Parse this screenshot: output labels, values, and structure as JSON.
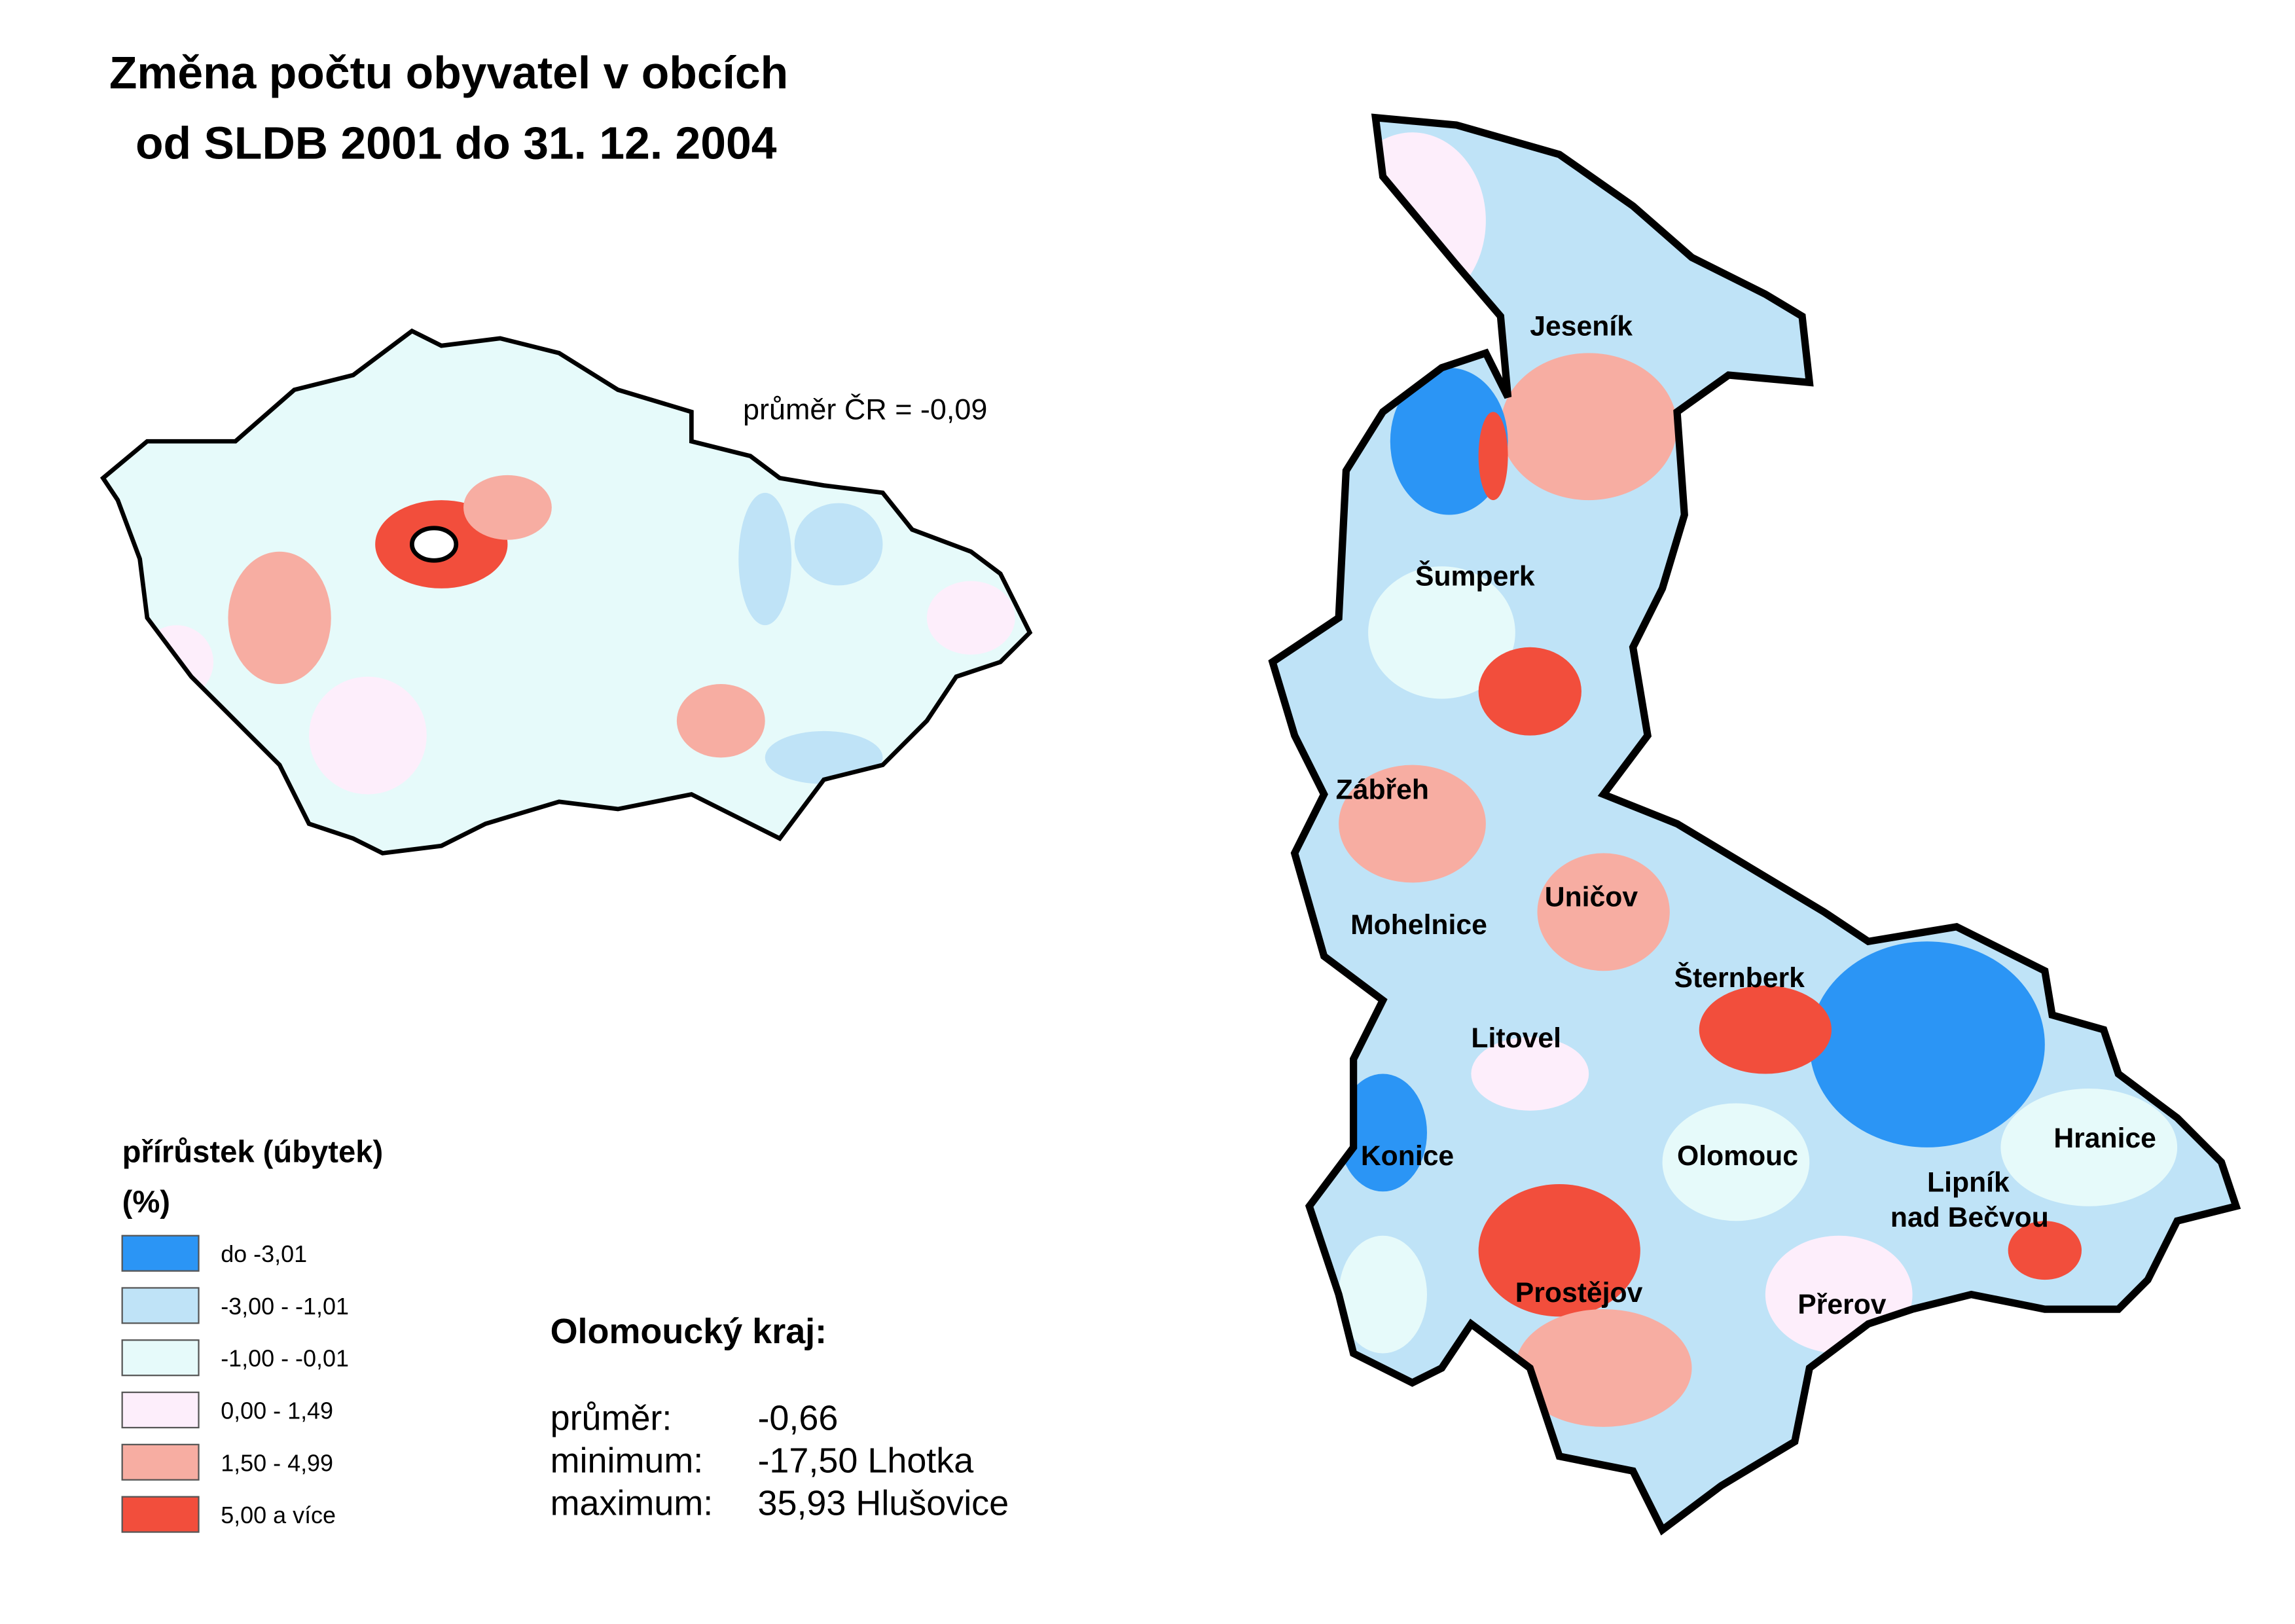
{
  "title": [
    "Změna počtu obyvatel v obcích",
    "od SLDB 2001 do 31. 12. 2004"
  ],
  "cr_average": "průměr ČR = -0,09",
  "legend": {
    "title": "přírůstek (úbytek)",
    "unit": "(%)",
    "items": [
      {
        "label": "do -3,01",
        "color": "#2b95f5"
      },
      {
        "label": "-3,00 - -1,01",
        "color": "#bfe3f7"
      },
      {
        "label": "-1,00 - -0,01",
        "color": "#e6fafa"
      },
      {
        "label": "0,00 - 1,49",
        "color": "#fdeefb"
      },
      {
        "label": "1,50 - 4,99",
        "color": "#f7ada2"
      },
      {
        "label": "5,00 a více",
        "color": "#f24e3c"
      }
    ]
  },
  "region_stats": {
    "title": "Olomoucký kraj:",
    "rows": [
      {
        "label": "průměr:",
        "value": "-0,66"
      },
      {
        "label": "minimum:",
        "value": "-17,50 Lhotka"
      },
      {
        "label": "maximum:",
        "value": "35,93 Hlušovice"
      }
    ]
  },
  "towns": [
    "Jeseník",
    "Šumperk",
    "Zábřeh",
    "Uničov",
    "Mohelnice",
    "Šternberk",
    "Litovel",
    "Hranice",
    "Konice",
    "Olomouc",
    "Lipník",
    "nad Bečvou",
    "Prostějov",
    "Přerov"
  ]
}
